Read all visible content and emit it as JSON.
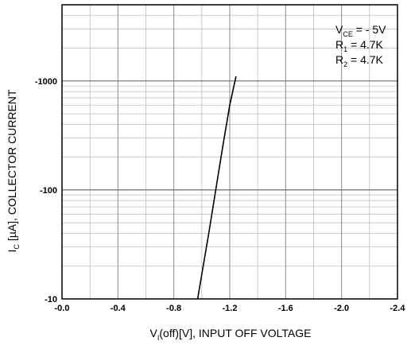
{
  "chart_data": {
    "type": "line",
    "title": "",
    "xlabel": {
      "main": "V",
      "sub": "I",
      "rest": "(off)[V], INPUT OFF VOLTAGE"
    },
    "ylabel": {
      "main": "I",
      "sub": "C",
      "rest": " [µA], COLLECTOR CURRENT"
    },
    "x_axis": {
      "scale": "linear",
      "range": [
        0.0,
        -2.4
      ],
      "ticks": [
        0.0,
        -0.4,
        -0.8,
        -1.2,
        -1.6,
        -2.0,
        -2.4
      ],
      "tick_labels": [
        "-0.0",
        "-0.4",
        "-0.8",
        "-1.2",
        "-1.6",
        "-2.0",
        "-2.4"
      ],
      "minor_step": 0.2
    },
    "y_axis": {
      "scale": "log",
      "range": [
        -10,
        -5000
      ],
      "ticks": [
        -10,
        -100,
        -1000
      ],
      "tick_labels": [
        "-10",
        "-100",
        "-1000"
      ]
    },
    "grid": true,
    "annotations": [
      {
        "main": "V",
        "sub": "CE",
        "rest": " = - 5V"
      },
      {
        "main": "R",
        "sub": "1",
        "rest": " = 4.7K"
      },
      {
        "main": "R",
        "sub": "2",
        "rest": " = 4.7K"
      }
    ],
    "annotation_placement": "top-right",
    "series": [
      {
        "color": "#000000",
        "points": [
          {
            "x": -0.97,
            "y": -10
          },
          {
            "x": -1.01,
            "y": -20
          },
          {
            "x": -1.05,
            "y": -40
          },
          {
            "x": -1.1,
            "y": -100
          },
          {
            "x": -1.15,
            "y": -250
          },
          {
            "x": -1.2,
            "y": -600
          },
          {
            "x": -1.245,
            "y": -1100
          }
        ]
      }
    ]
  }
}
